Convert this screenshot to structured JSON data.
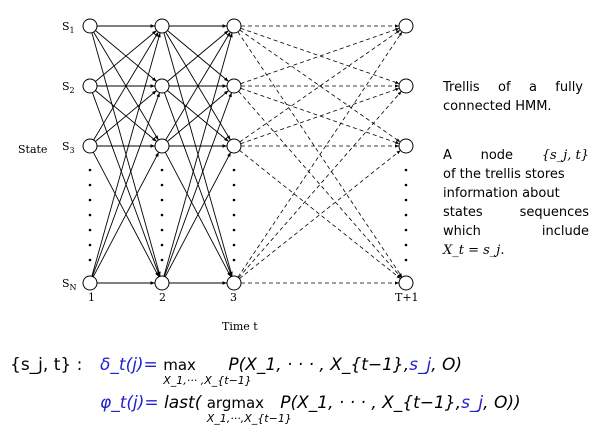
{
  "diagram": {
    "state_axis_label": "State",
    "time_axis_label": "Time t",
    "states": [
      {
        "main": "S",
        "sub": "1"
      },
      {
        "main": "S",
        "sub": "2"
      },
      {
        "main": "S",
        "sub": "3"
      },
      {
        "main": "S",
        "sub": "N"
      }
    ],
    "times": [
      "1",
      "2",
      "3",
      "T+1"
    ]
  },
  "caption": {
    "line1": "Trellis of a fully",
    "line2": "connected HMM."
  },
  "node_desc": {
    "w_a": "A",
    "w_node": "node",
    "node_math": "{s_j, t}",
    "line2": "of the trellis stores",
    "line3": "information about",
    "w_states": "states",
    "w_sequences": "sequences",
    "w_which": "which",
    "w_include": "include",
    "equation": "X_t = s_j."
  },
  "formulas": {
    "key": "{s_j, t} :",
    "delta_lhs": "δ_t(j)=",
    "delta_op": "max",
    "delta_under": "X_1,··· ,X_{t−1}",
    "delta_body_pre": "P(X_1, · · · , X_{t−1},",
    "delta_sj": "s_j",
    "delta_body_post": ", O)",
    "phi_lhs": "φ_t(j)=",
    "phi_last": "last(",
    "phi_op": "argmax",
    "phi_under": "X_1,···,X_{t−1}",
    "phi_body_pre": "P(X_1, · · · , X_{t−1},",
    "phi_sj": "s_j",
    "phi_body_post": ", O))"
  }
}
